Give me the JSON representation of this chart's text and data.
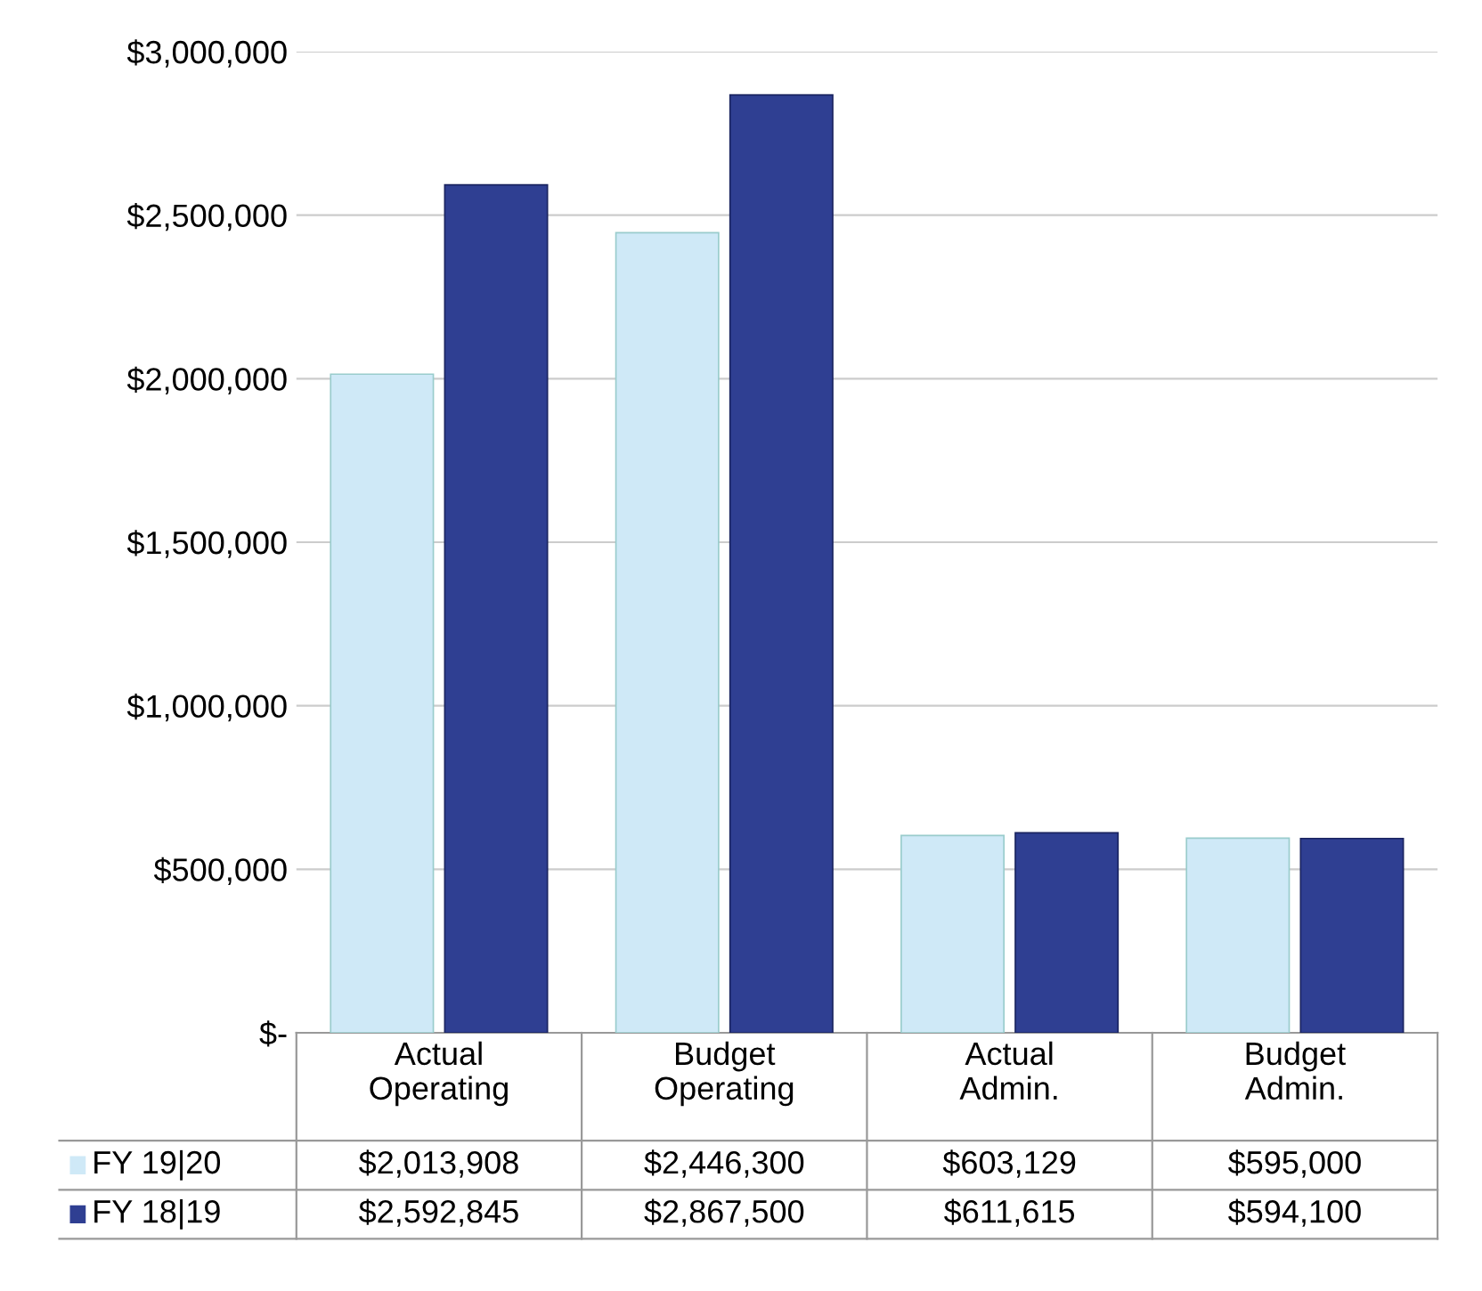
{
  "chart_data": {
    "type": "bar",
    "categories": [
      "Actual\nOperating",
      "Budget\nOperating",
      "Actual\nAdmin.",
      "Budget\nAdmin."
    ],
    "series": [
      {
        "name": "FY 19|20",
        "color": "#cfe9f7",
        "values": [
          2013908,
          2446300,
          603129,
          595000
        ],
        "value_labels": [
          "$2,013,908",
          "$2,446,300",
          "$603,129",
          "$595,000"
        ]
      },
      {
        "name": "FY 18|19",
        "color": "#2f3f92",
        "values": [
          2592845,
          2867500,
          611615,
          594100
        ],
        "value_labels": [
          "$2,592,845",
          "$2,867,500",
          "$611,615",
          "$594,100"
        ]
      }
    ],
    "ylim": [
      0,
      3000000
    ],
    "yticks": [
      {
        "value": 0,
        "label": "$-"
      },
      {
        "value": 500000,
        "label": "$500,000"
      },
      {
        "value": 1000000,
        "label": "$1,000,000"
      },
      {
        "value": 1500000,
        "label": "$1,500,000"
      },
      {
        "value": 2000000,
        "label": "$2,000,000"
      },
      {
        "value": 2500000,
        "label": "$2,500,000"
      },
      {
        "value": 3000000,
        "label": "$3,000,000"
      }
    ],
    "grid": "y",
    "legend": "bottom"
  }
}
